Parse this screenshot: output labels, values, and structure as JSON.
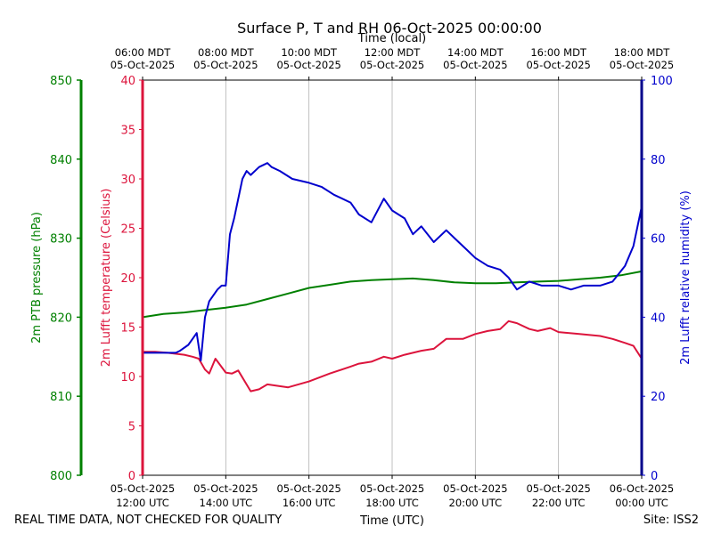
{
  "chart_data": {
    "type": "line",
    "title": "Surface P, T and RH 06-Oct-2025 00:00:00",
    "xlabel_top": "Time (local)",
    "xlabel_bottom": "Time (UTC)",
    "footer_left": "REAL TIME DATA, NOT CHECKED FOR QUALITY",
    "footer_right": "Site: ISS2",
    "x_range_utc_hours": [
      12,
      24
    ],
    "grid": "vertical",
    "bottom_ticks": [
      {
        "hour": 12,
        "line1": "05-Oct-2025",
        "line2": "12:00 UTC"
      },
      {
        "hour": 14,
        "line1": "05-Oct-2025",
        "line2": "14:00 UTC"
      },
      {
        "hour": 16,
        "line1": "05-Oct-2025",
        "line2": "16:00 UTC"
      },
      {
        "hour": 18,
        "line1": "05-Oct-2025",
        "line2": "18:00 UTC"
      },
      {
        "hour": 20,
        "line1": "05-Oct-2025",
        "line2": "20:00 UTC"
      },
      {
        "hour": 22,
        "line1": "05-Oct-2025",
        "line2": "22:00 UTC"
      },
      {
        "hour": 24,
        "line1": "06-Oct-2025",
        "line2": "00:00 UTC"
      }
    ],
    "top_ticks": [
      {
        "hour": 12,
        "line1": "06:00 MDT",
        "line2": "05-Oct-2025"
      },
      {
        "hour": 14,
        "line1": "08:00 MDT",
        "line2": "05-Oct-2025"
      },
      {
        "hour": 16,
        "line1": "10:00 MDT",
        "line2": "05-Oct-2025"
      },
      {
        "hour": 18,
        "line1": "12:00 MDT",
        "line2": "05-Oct-2025"
      },
      {
        "hour": 20,
        "line1": "14:00 MDT",
        "line2": "05-Oct-2025"
      },
      {
        "hour": 22,
        "line1": "16:00 MDT",
        "line2": "05-Oct-2025"
      },
      {
        "hour": 24,
        "line1": "18:00 MDT",
        "line2": "05-Oct-2025"
      }
    ],
    "axes": {
      "pressure": {
        "label": "2m PTB pressure (hPa)",
        "color": "#008000",
        "ylim": [
          800,
          850
        ],
        "ticks": [
          800,
          810,
          820,
          830,
          840,
          850
        ]
      },
      "temperature": {
        "label": "2m Lufft temperature (Celsius)",
        "color": "#dc143c",
        "ylim": [
          0,
          40
        ],
        "ticks": [
          0,
          5,
          10,
          15,
          20,
          25,
          30,
          35,
          40
        ]
      },
      "humidity": {
        "label": "2m Lufft relative humidity (%)",
        "color": "#0000cd",
        "ylim": [
          0,
          100
        ],
        "ticks": [
          0,
          20,
          40,
          60,
          80,
          100
        ]
      }
    },
    "series": [
      {
        "axis": "pressure",
        "color": "#008000",
        "x": [
          12.0,
          12.5,
          13.0,
          13.5,
          14.0,
          14.5,
          15.0,
          15.5,
          16.0,
          16.5,
          17.0,
          17.5,
          18.0,
          18.5,
          19.0,
          19.5,
          20.0,
          20.5,
          21.0,
          21.5,
          22.0,
          22.5,
          23.0,
          23.5,
          24.0
        ],
        "y": [
          820.0,
          820.4,
          820.6,
          820.9,
          821.2,
          821.6,
          822.3,
          823.0,
          823.7,
          824.1,
          824.5,
          824.7,
          824.8,
          824.9,
          824.7,
          824.4,
          824.3,
          824.3,
          824.4,
          824.5,
          824.6,
          824.8,
          825.0,
          825.3,
          825.8
        ]
      },
      {
        "axis": "temperature",
        "color": "#dc143c",
        "x": [
          12.0,
          12.3,
          12.6,
          13.0,
          13.2,
          13.35,
          13.5,
          13.6,
          13.75,
          14.0,
          14.15,
          14.3,
          14.6,
          14.8,
          15.0,
          15.5,
          16.0,
          16.5,
          17.0,
          17.2,
          17.5,
          17.8,
          18.0,
          18.3,
          18.5,
          18.7,
          19.0,
          19.3,
          19.7,
          20.0,
          20.3,
          20.6,
          20.8,
          21.0,
          21.3,
          21.5,
          21.8,
          22.0,
          22.5,
          23.0,
          23.3,
          23.6,
          23.8,
          24.0
        ],
        "y": [
          12.5,
          12.5,
          12.4,
          12.2,
          12.0,
          11.8,
          10.7,
          10.3,
          11.8,
          10.4,
          10.3,
          10.6,
          8.5,
          8.7,
          9.2,
          8.9,
          9.5,
          10.3,
          11.0,
          11.3,
          11.5,
          12.0,
          11.8,
          12.2,
          12.4,
          12.6,
          12.8,
          13.8,
          13.8,
          14.3,
          14.6,
          14.8,
          15.6,
          15.4,
          14.8,
          14.6,
          14.9,
          14.5,
          14.3,
          14.1,
          13.8,
          13.4,
          13.1,
          11.8
        ]
      },
      {
        "axis": "humidity",
        "color": "#0000cd",
        "x": [
          12.0,
          12.5,
          12.8,
          12.9,
          13.1,
          13.3,
          13.4,
          13.5,
          13.6,
          13.8,
          13.9,
          14.0,
          14.1,
          14.2,
          14.4,
          14.5,
          14.6,
          14.8,
          15.0,
          15.1,
          15.3,
          15.6,
          16.0,
          16.3,
          16.6,
          17.0,
          17.2,
          17.5,
          17.8,
          18.0,
          18.3,
          18.5,
          18.7,
          19.0,
          19.3,
          19.5,
          19.8,
          20.0,
          20.3,
          20.6,
          20.8,
          21.0,
          21.3,
          21.6,
          22.0,
          22.3,
          22.6,
          23.0,
          23.3,
          23.6,
          23.8,
          24.0
        ],
        "y": [
          31,
          31,
          31,
          31.5,
          33,
          36,
          29,
          40,
          44,
          47,
          48,
          48,
          61,
          65,
          75,
          77,
          76,
          78,
          79,
          78,
          77,
          75,
          74,
          73,
          71,
          69,
          66,
          64,
          70,
          67,
          65,
          61,
          63,
          59,
          62,
          60,
          57,
          55,
          53,
          52,
          50,
          47,
          49,
          48,
          48,
          47,
          48,
          48,
          49,
          53,
          58,
          68
        ]
      }
    ]
  }
}
